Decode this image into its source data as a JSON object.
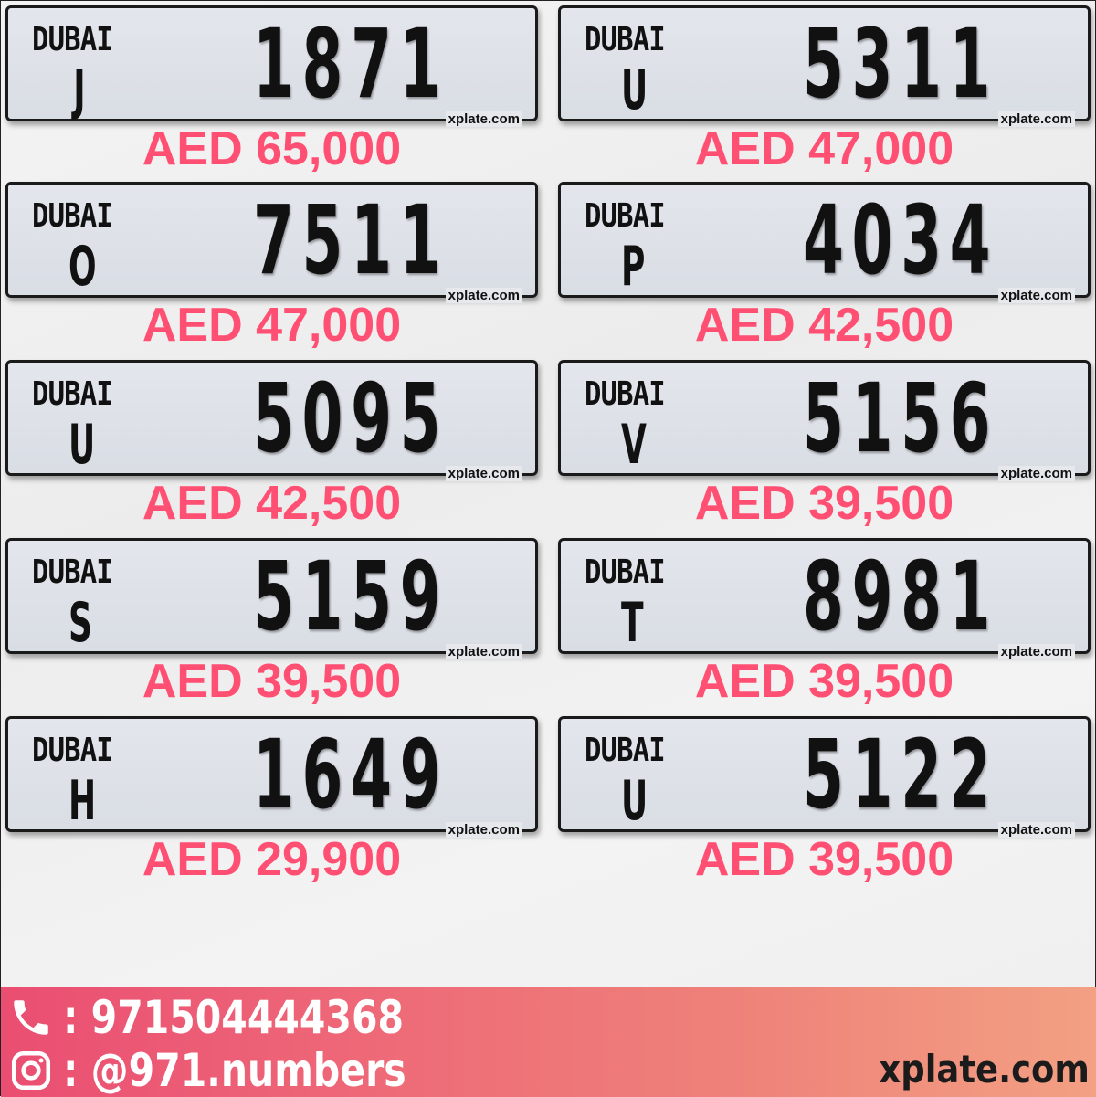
{
  "plates": [
    {
      "emirate": "DUBAI",
      "code": "J",
      "number": "1871",
      "watermark": "xplate.com",
      "price": "AED 65,000"
    },
    {
      "emirate": "DUBAI",
      "code": "U",
      "number": "5311",
      "watermark": "xplate.com",
      "price": "AED 47,000"
    },
    {
      "emirate": "DUBAI",
      "code": "O",
      "number": "7511",
      "watermark": "xplate.com",
      "price": "AED 47,000"
    },
    {
      "emirate": "DUBAI",
      "code": "P",
      "number": "4034",
      "watermark": "xplate.com",
      "price": "AED 42,500"
    },
    {
      "emirate": "DUBAI",
      "code": "U",
      "number": "5095",
      "watermark": "xplate.com",
      "price": "AED 42,500"
    },
    {
      "emirate": "DUBAI",
      "code": "V",
      "number": "5156",
      "watermark": "xplate.com",
      "price": "AED 39,500"
    },
    {
      "emirate": "DUBAI",
      "code": "S",
      "number": "5159",
      "watermark": "xplate.com",
      "price": "AED 39,500"
    },
    {
      "emirate": "DUBAI",
      "code": "T",
      "number": "8981",
      "watermark": "xplate.com",
      "price": "AED 39,500"
    },
    {
      "emirate": "DUBAI",
      "code": "H",
      "number": "1649",
      "watermark": "xplate.com",
      "price": "AED 29,900"
    },
    {
      "emirate": "DUBAI",
      "code": "U",
      "number": "5122",
      "watermark": "xplate.com",
      "price": "AED 39,500"
    }
  ],
  "footer": {
    "phone": ": 971504444368",
    "phone_icon": "phone-icon",
    "instagram": ": @971.numbers",
    "instagram_icon": "instagram-icon",
    "site": "xplate.com"
  },
  "colors": {
    "price": "#ff4f73",
    "footer_start": "#ea4e72",
    "footer_end": "#f3a083"
  }
}
